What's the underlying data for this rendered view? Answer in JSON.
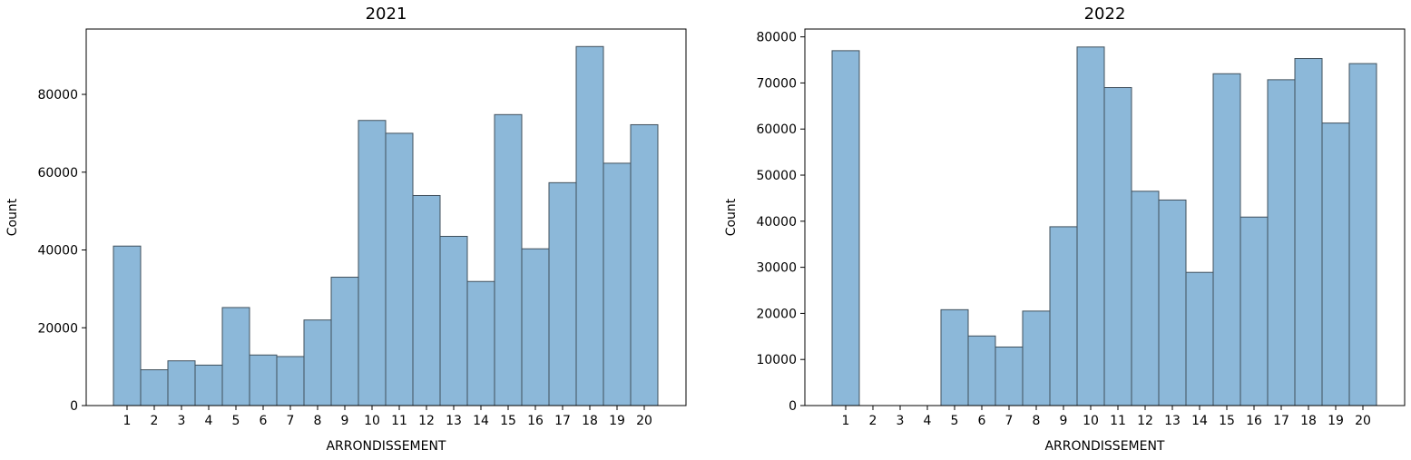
{
  "chart_data": [
    {
      "type": "bar",
      "title": "2021",
      "xlabel": "ARRONDISSEMENT",
      "ylabel": "Count",
      "categories": [
        "1",
        "2",
        "3",
        "4",
        "5",
        "6",
        "7",
        "8",
        "9",
        "10",
        "11",
        "12",
        "13",
        "14",
        "15",
        "16",
        "17",
        "18",
        "19",
        "20"
      ],
      "values": [
        41000,
        9200,
        11500,
        10400,
        25200,
        13000,
        12600,
        22000,
        33000,
        73300,
        70000,
        54000,
        43500,
        31900,
        74800,
        40300,
        57300,
        92300,
        62300,
        72200
      ],
      "yticks": [
        0,
        20000,
        40000,
        60000,
        80000
      ],
      "ylim": [
        0,
        96800
      ],
      "grid": false,
      "color": "#8cb8d9"
    },
    {
      "type": "bar",
      "title": "2022",
      "xlabel": "ARRONDISSEMENT",
      "ylabel": "Count",
      "categories": [
        "1",
        "2",
        "3",
        "4",
        "5",
        "6",
        "7",
        "8",
        "9",
        "10",
        "11",
        "12",
        "13",
        "14",
        "15",
        "16",
        "17",
        "18",
        "19",
        "20"
      ],
      "values": [
        77000,
        0,
        0,
        0,
        20800,
        15100,
        12700,
        20500,
        38800,
        77800,
        69000,
        46500,
        44600,
        28900,
        72000,
        40900,
        70700,
        75300,
        61300,
        74200
      ],
      "yticks": [
        0,
        10000,
        20000,
        30000,
        40000,
        50000,
        60000,
        70000,
        80000
      ],
      "ylim": [
        0,
        81700
      ],
      "grid": false,
      "color": "#8cb8d9"
    }
  ]
}
